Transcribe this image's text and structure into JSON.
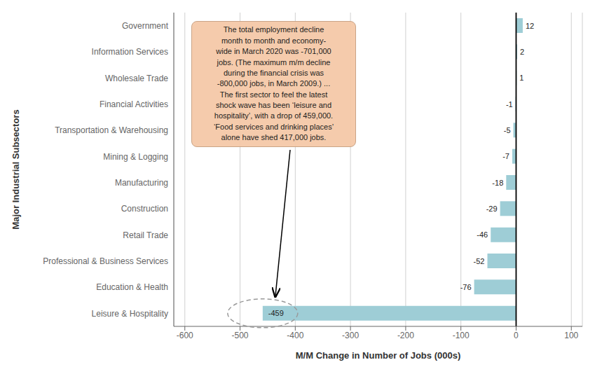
{
  "chart_data": {
    "type": "bar",
    "orientation": "horizontal",
    "categories": [
      "Leisure & Hospitality",
      "Education & Health",
      "Professional & Business Services",
      "Retail Trade",
      "Construction",
      "Manufacturing",
      "Mining & Logging",
      "Transportation & Warehousing",
      "Financial Activities",
      "Wholesale Trade",
      "Information Services",
      "Government"
    ],
    "values": [
      -459,
      -76,
      -52,
      -46,
      -29,
      -18,
      -7,
      -5,
      -1,
      1,
      2,
      12
    ],
    "color": "#9ecdd6",
    "xlim": [
      -620,
      120
    ],
    "xticks": [
      -600,
      -500,
      -400,
      -300,
      -200,
      -100,
      0,
      100
    ],
    "xlabel": "M/M Change in Number of Jobs (000s)",
    "ylabel": "Major Industrial Subsectors",
    "annotation": "The total employment decline\nmonth to month and economy-\nwide in March 2020 was -701,000\njobs. (The maximum m/m decline\nduring the financial crisis was\n-800,000 jobs, in March 2009.) ...\nThe first sector to feel the latest\nshock wave has been ‘leisure and\nhospitality’, with a drop of 459,000.\n‘Food services and drinking places’\nalone have shed 417,000 jobs.",
    "grid": true,
    "data_labels": true
  }
}
